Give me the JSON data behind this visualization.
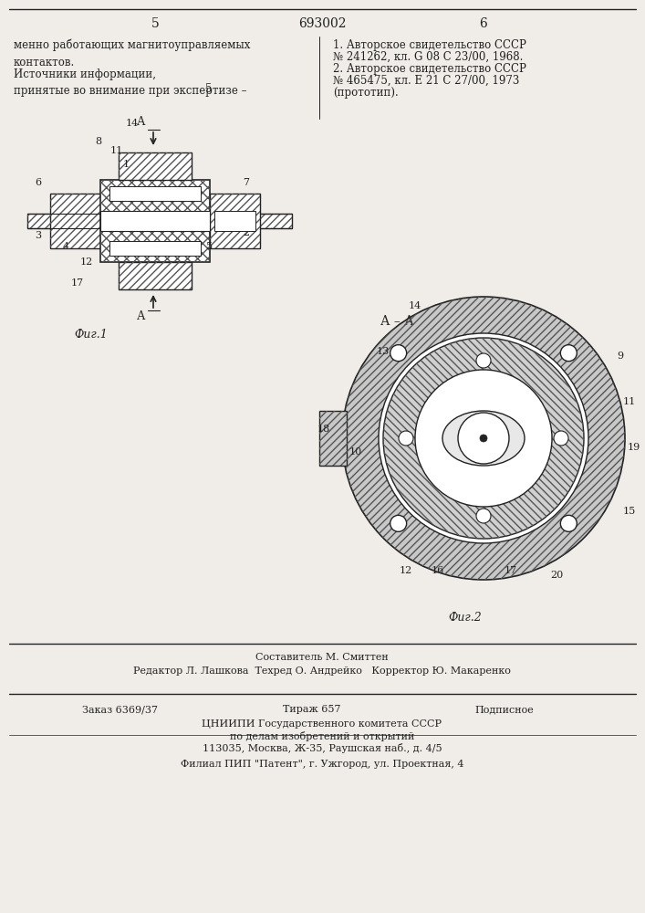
{
  "bg_color": "#f0ede8",
  "page_number_left": "5",
  "page_number_center": "693002",
  "page_number_right": "6",
  "top_left_text": "менно работающих магнитоуправляемых\nконтактов.",
  "top_right_text_lines": [
    "1. Авторское свидетельство СССР",
    "№ 241262, кл. G 08 C 23/00, 1968.",
    "2. Авторское свидетельство СССР",
    "№ 465475, кл. Е 21 С 27/00, 1973",
    "(прототип)."
  ],
  "sources_text": "Источники информации,\nпринятые во внимание при экспертизе –",
  "sources_num": "5",
  "fig1_label": "Фиг.1",
  "fig2_label": "Фиг.2",
  "section_label": "А – А",
  "bottom_composer": "Составитель М. Смиттен",
  "bottom_editor": "Редактор Л. Лашкова  Техред О. Андрейко   Корректор Ю. Макаренко",
  "bottom_order": "Заказ 6369/37",
  "bottom_circulation": "Тираж 657",
  "bottom_subscription": "Подписное",
  "bottom_org": "ЦНИИПИ Государственного комитета СССР",
  "bottom_org2": "по делам изобретений и открытий",
  "bottom_address": "113035, Москва, Ж-35, Раушская наб., д. 4/5",
  "bottom_branch": "Филиал ПИП \"Патент\", г. Ужгород, ул. Проектная, 4",
  "hatch_color": "#555555",
  "line_color": "#222222"
}
